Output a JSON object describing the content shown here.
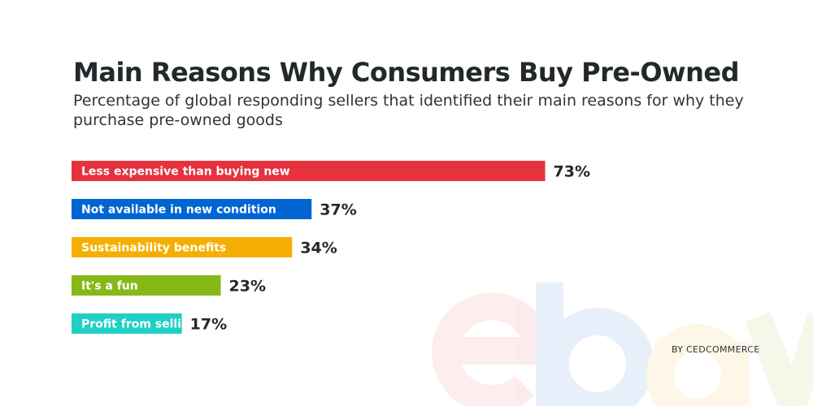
{
  "chart_data": {
    "type": "bar",
    "orientation": "horizontal",
    "title": "Main Reasons Why Consumers Buy Pre-Owned",
    "subtitle": "Percentage of global responding sellers that identified their main reasons for why they purchase pre-owned goods",
    "categories": [
      "Less expensive than buying new",
      "Not available in new condition",
      "Sustainability benefits",
      "It's a fun",
      "Profit from selling them"
    ],
    "values": [
      73,
      37,
      34,
      23,
      17
    ],
    "value_labels": [
      "73%",
      "37%",
      "34%",
      "23%",
      "17%"
    ],
    "colors": [
      "#e6323f",
      "#0064d2",
      "#f5af02",
      "#86b817",
      "#1fd0c4"
    ],
    "unit": "%",
    "grid": false,
    "legend": "none"
  },
  "credit": "BY CEDCOMMERCE",
  "watermark": {
    "logo_text": "ebay",
    "letter_colors": [
      "#e53238",
      "#0064d2",
      "#f5af02",
      "#86b817"
    ]
  }
}
